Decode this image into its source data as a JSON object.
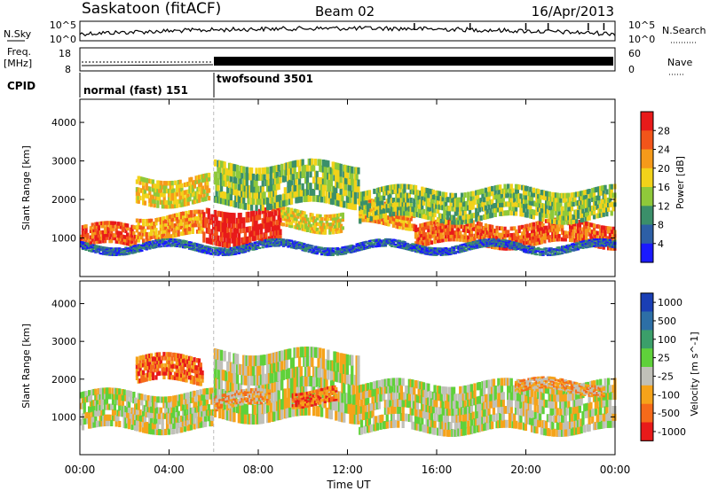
{
  "header": {
    "station": "Saskatoon (fitACF)",
    "beam": "Beam 02",
    "date": "16/Apr/2013"
  },
  "noise_panel": {
    "left_label": "N.Sky",
    "left_ticks": [
      "10^5",
      "10^0"
    ],
    "right_label": "N.Search",
    "right_ticks": [
      "10^5",
      "10^0"
    ]
  },
  "freq_panel": {
    "left_label_1": "Freq.",
    "left_label_2": "[MHz]",
    "left_ticks": [
      "18",
      "8"
    ],
    "right_label": "Nave",
    "right_ticks": [
      "60",
      "0"
    ]
  },
  "cpid": {
    "label": "CPID",
    "segments": [
      {
        "name": "normal (fast) 151",
        "start_hour": 0,
        "end_hour": 6
      },
      {
        "name": "twofsound 3501",
        "start_hour": 6,
        "end_hour": 24
      }
    ]
  },
  "chart_data": [
    {
      "type": "heatmap",
      "title": "",
      "quantity": "Power",
      "ylabel": "Slant Range [km]",
      "xlabel": "Time UT",
      "ylim": [
        0,
        4600
      ],
      "xlim_hours": [
        0,
        24
      ],
      "yticks": [
        1000,
        2000,
        3000,
        4000
      ],
      "colorbar": {
        "label": "Power [dB]",
        "ticks": [
          "4",
          "8",
          "12",
          "16",
          "20",
          "24",
          "28"
        ],
        "colors": [
          "#1a1aff",
          "#2d5fa6",
          "#3b8f6a",
          "#8fc93a",
          "#f2d21a",
          "#f59a1a",
          "#f2551a",
          "#e81a1a"
        ]
      },
      "bands": [
        {
          "t0": 0,
          "t1": 2.5,
          "r0": 850,
          "r1": 1400,
          "level": 6
        },
        {
          "t0": 2.5,
          "t1": 5.5,
          "r0": 1100,
          "r1": 1700,
          "level": 5
        },
        {
          "t0": 5.5,
          "t1": 9,
          "r0": 1000,
          "r1": 1900,
          "level": 7
        },
        {
          "t0": 9,
          "t1": 11.8,
          "r0": 1300,
          "r1": 1800,
          "level": 4
        },
        {
          "t0": 12.5,
          "t1": 15,
          "r0": 1400,
          "r1": 2000,
          "level": 5
        },
        {
          "t0": 15,
          "t1": 24,
          "r0": 900,
          "r1": 1500,
          "level": 6
        },
        {
          "t0": 2.5,
          "t1": 5.8,
          "r0": 2000,
          "r1": 2700,
          "level": 4
        },
        {
          "t0": 6,
          "t1": 12.5,
          "r0": 2000,
          "r1": 3100,
          "level": 3
        },
        {
          "t0": 12.5,
          "t1": 24,
          "r0": 1600,
          "r1": 2400,
          "level": 3
        },
        {
          "t0": 0,
          "t1": 24,
          "r0": 700,
          "r1": 900,
          "level": 1
        }
      ]
    },
    {
      "type": "heatmap",
      "title": "",
      "quantity": "Velocity",
      "ylabel": "Slant Range [km]",
      "xlabel": "Time UT",
      "ylim": [
        0,
        4600
      ],
      "xlim_hours": [
        0,
        24
      ],
      "yticks": [
        1000,
        2000,
        3000,
        4000
      ],
      "colorbar": {
        "label": "Velocity [m s^-1]",
        "ticks": [
          "1000",
          "500",
          "100",
          "25",
          "-25",
          "-100",
          "-500",
          "-1000"
        ],
        "colors": [
          "#1a3fb5",
          "#2d6fa6",
          "#3b9f6a",
          "#5fd13a",
          "#c0c0b8",
          "#f5a31a",
          "#f56a1a",
          "#e81a1a"
        ]
      },
      "bands": [
        {
          "t0": 0,
          "t1": 6,
          "r0": 800,
          "r1": 1800,
          "level": 4
        },
        {
          "t0": 6,
          "t1": 12.5,
          "r0": 1200,
          "r1": 3000,
          "level": 4
        },
        {
          "t0": 12.5,
          "t1": 24,
          "r0": 800,
          "r1": 2100,
          "level": 4
        },
        {
          "t0": 2.5,
          "t1": 5.5,
          "r0": 2000,
          "r1": 2700,
          "level": 6
        },
        {
          "t0": 6,
          "t1": 8.5,
          "r0": 1300,
          "r1": 1700,
          "level": 5
        },
        {
          "t0": 9.5,
          "t1": 11.5,
          "r0": 1400,
          "r1": 1800,
          "level": 6
        },
        {
          "t0": 19.5,
          "t1": 23.5,
          "r0": 1700,
          "r1": 2000,
          "level": 5
        }
      ]
    }
  ],
  "x_axis": {
    "ticks": [
      "00:00",
      "04:00",
      "08:00",
      "12:00",
      "16:00",
      "20:00",
      "00:00"
    ],
    "label": "Time UT"
  }
}
